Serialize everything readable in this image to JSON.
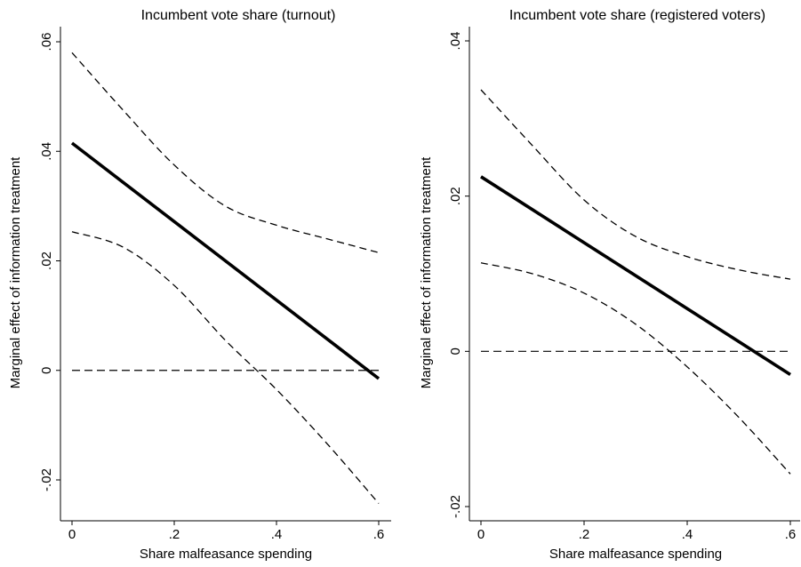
{
  "chart_data": [
    {
      "type": "line",
      "title": "Incumbent vote share (turnout)",
      "xlabel": "Share malfeasance spending",
      "ylabel": "Marginal effect of information treatment",
      "xlim": [
        0,
        0.6
      ],
      "ylim": [
        -0.02,
        0.06
      ],
      "xticks": [
        "0",
        ".2",
        ".4",
        ".6"
      ],
      "xtick_values": [
        0,
        0.2,
        0.4,
        0.6
      ],
      "yticks": [
        "-.02",
        "0",
        ".02",
        ".04",
        ".06"
      ],
      "ytick_values": [
        -0.02,
        0,
        0.02,
        0.04,
        0.06
      ],
      "grid": false,
      "reference_line_y": 0,
      "series": [
        {
          "role": "estimate",
          "style": "solid-thick",
          "x": [
            0,
            0.6
          ],
          "y": [
            0.0415,
            -0.0015
          ]
        },
        {
          "role": "upper-ci",
          "style": "dashed",
          "x": [
            0,
            0.1,
            0.2,
            0.3,
            0.4,
            0.5,
            0.6
          ],
          "y": [
            0.058,
            0.0475,
            0.0375,
            0.03,
            0.0265,
            0.024,
            0.0215
          ]
        },
        {
          "role": "lower-ci",
          "style": "dashed",
          "x": [
            0,
            0.1,
            0.2,
            0.3,
            0.4,
            0.5,
            0.6
          ],
          "y": [
            0.0253,
            0.0225,
            0.0155,
            0.0055,
            -0.0035,
            -0.0135,
            -0.0243
          ]
        }
      ]
    },
    {
      "type": "line",
      "title": "Incumbent vote share (registered voters)",
      "xlabel": "Share malfeasance spending",
      "ylabel": "Marginal effect of information treatment",
      "xlim": [
        0,
        0.6
      ],
      "ylim": [
        -0.02,
        0.04
      ],
      "xticks": [
        "0",
        ".2",
        ".4",
        ".6"
      ],
      "xtick_values": [
        0,
        0.2,
        0.4,
        0.6
      ],
      "yticks": [
        "-.02",
        "0",
        ".02",
        ".04"
      ],
      "ytick_values": [
        -0.02,
        0,
        0.02,
        0.04
      ],
      "grid": false,
      "reference_line_y": 0,
      "series": [
        {
          "role": "estimate",
          "style": "solid-thick",
          "x": [
            0,
            0.6
          ],
          "y": [
            0.0225,
            -0.003
          ]
        },
        {
          "role": "upper-ci",
          "style": "dashed",
          "x": [
            0,
            0.1,
            0.2,
            0.3,
            0.4,
            0.5,
            0.6
          ],
          "y": [
            0.0337,
            0.0265,
            0.0195,
            0.0148,
            0.0122,
            0.0105,
            0.0093
          ]
        },
        {
          "role": "lower-ci",
          "style": "dashed",
          "x": [
            0,
            0.1,
            0.2,
            0.3,
            0.4,
            0.5,
            0.6
          ],
          "y": [
            0.0114,
            0.01,
            0.0075,
            0.0035,
            -0.002,
            -0.0085,
            -0.0158
          ]
        }
      ]
    }
  ]
}
